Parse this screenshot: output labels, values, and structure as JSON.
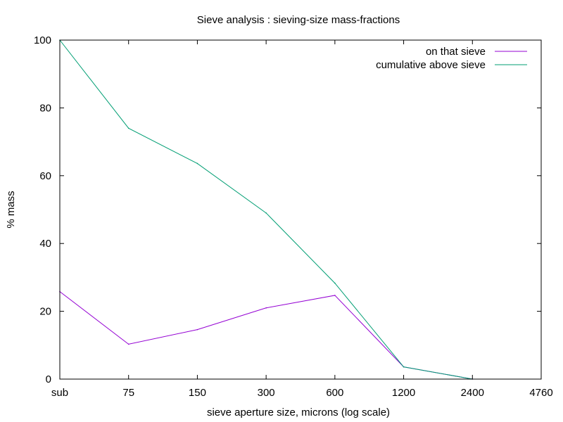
{
  "chart_data": {
    "type": "line",
    "title": "Sieve analysis : sieving-size mass-fractions",
    "xlabel": "sieve aperture size, microns  (log scale)",
    "ylabel": "% mass",
    "x_tick_labels": [
      "sub",
      "75",
      "150",
      "300",
      "600",
      "1200",
      "2400",
      "4760"
    ],
    "ylim": [
      0,
      100
    ],
    "y_ticks": [
      0,
      20,
      40,
      60,
      80,
      100
    ],
    "x_scale": "log",
    "grid": false,
    "legend_position": "top-right",
    "series": [
      {
        "name": "on that sieve",
        "color": "#9400d3",
        "x": [
          "sub",
          "75",
          "150",
          "300",
          "600",
          "1200",
          "2400"
        ],
        "values": [
          25.8,
          10.3,
          14.6,
          21.0,
          24.7,
          3.6,
          0.0
        ]
      },
      {
        "name": "cumulative above sieve",
        "color": "#009e73",
        "x": [
          "sub",
          "75",
          "150",
          "300",
          "600",
          "1200",
          "2400"
        ],
        "values": [
          100.0,
          74.0,
          63.6,
          49.0,
          28.3,
          3.6,
          0.0
        ]
      }
    ]
  }
}
